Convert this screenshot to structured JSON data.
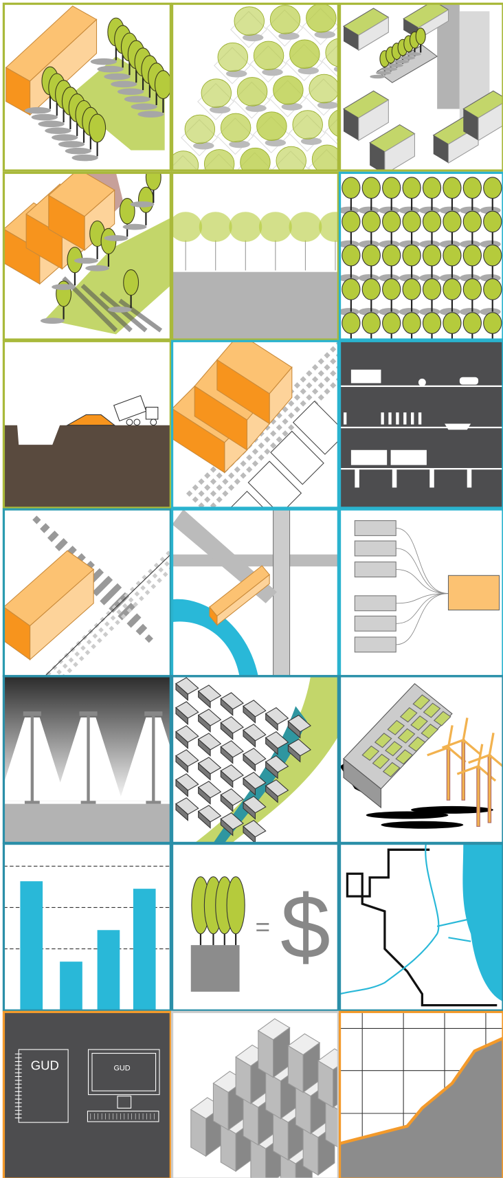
{
  "notebook_label": "GUD",
  "monitor_label": "GUD",
  "equation": {
    "equals": "=",
    "currency": "$"
  }
}
